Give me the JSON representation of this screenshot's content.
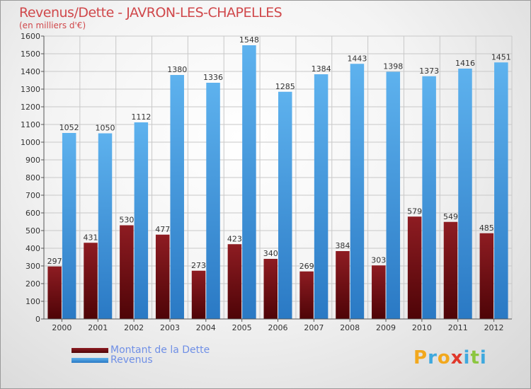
{
  "title": "Revenus/Dette - JAVRON-LES-CHAPELLES",
  "subtitle": "(en milliers d'€)",
  "chart_data": {
    "type": "bar",
    "categories": [
      "2000",
      "2001",
      "2002",
      "2003",
      "2004",
      "2005",
      "2006",
      "2007",
      "2008",
      "2009",
      "2010",
      "2011",
      "2012"
    ],
    "series": [
      {
        "name": "Montant de la Dette",
        "color": "#7a0f14",
        "values": [
          297,
          431,
          530,
          477,
          273,
          423,
          340,
          269,
          384,
          303,
          579,
          549,
          485
        ]
      },
      {
        "name": "Revenus",
        "color": "#4a9fe0",
        "values": [
          1052,
          1050,
          1112,
          1380,
          1336,
          1548,
          1285,
          1384,
          1443,
          1398,
          1373,
          1416,
          1451
        ]
      }
    ],
    "ylim": [
      0,
      1600
    ],
    "yticks": [
      0,
      100,
      200,
      300,
      400,
      500,
      600,
      700,
      800,
      900,
      1000,
      1100,
      1200,
      1300,
      1400,
      1500,
      1600
    ],
    "grid": true,
    "legend_position": "bottom-left"
  },
  "legend": {
    "debt_label": "Montant de la Dette",
    "revenue_label": "Revenus"
  },
  "logo": {
    "letters": [
      "P",
      "r",
      "o",
      "x",
      "i",
      "t",
      "i"
    ],
    "colors": [
      "#f2a81d",
      "#3fa9de",
      "#f2a81d",
      "#e0382b",
      "#3fa9de",
      "#8cc63f",
      "#3fa9de"
    ]
  }
}
